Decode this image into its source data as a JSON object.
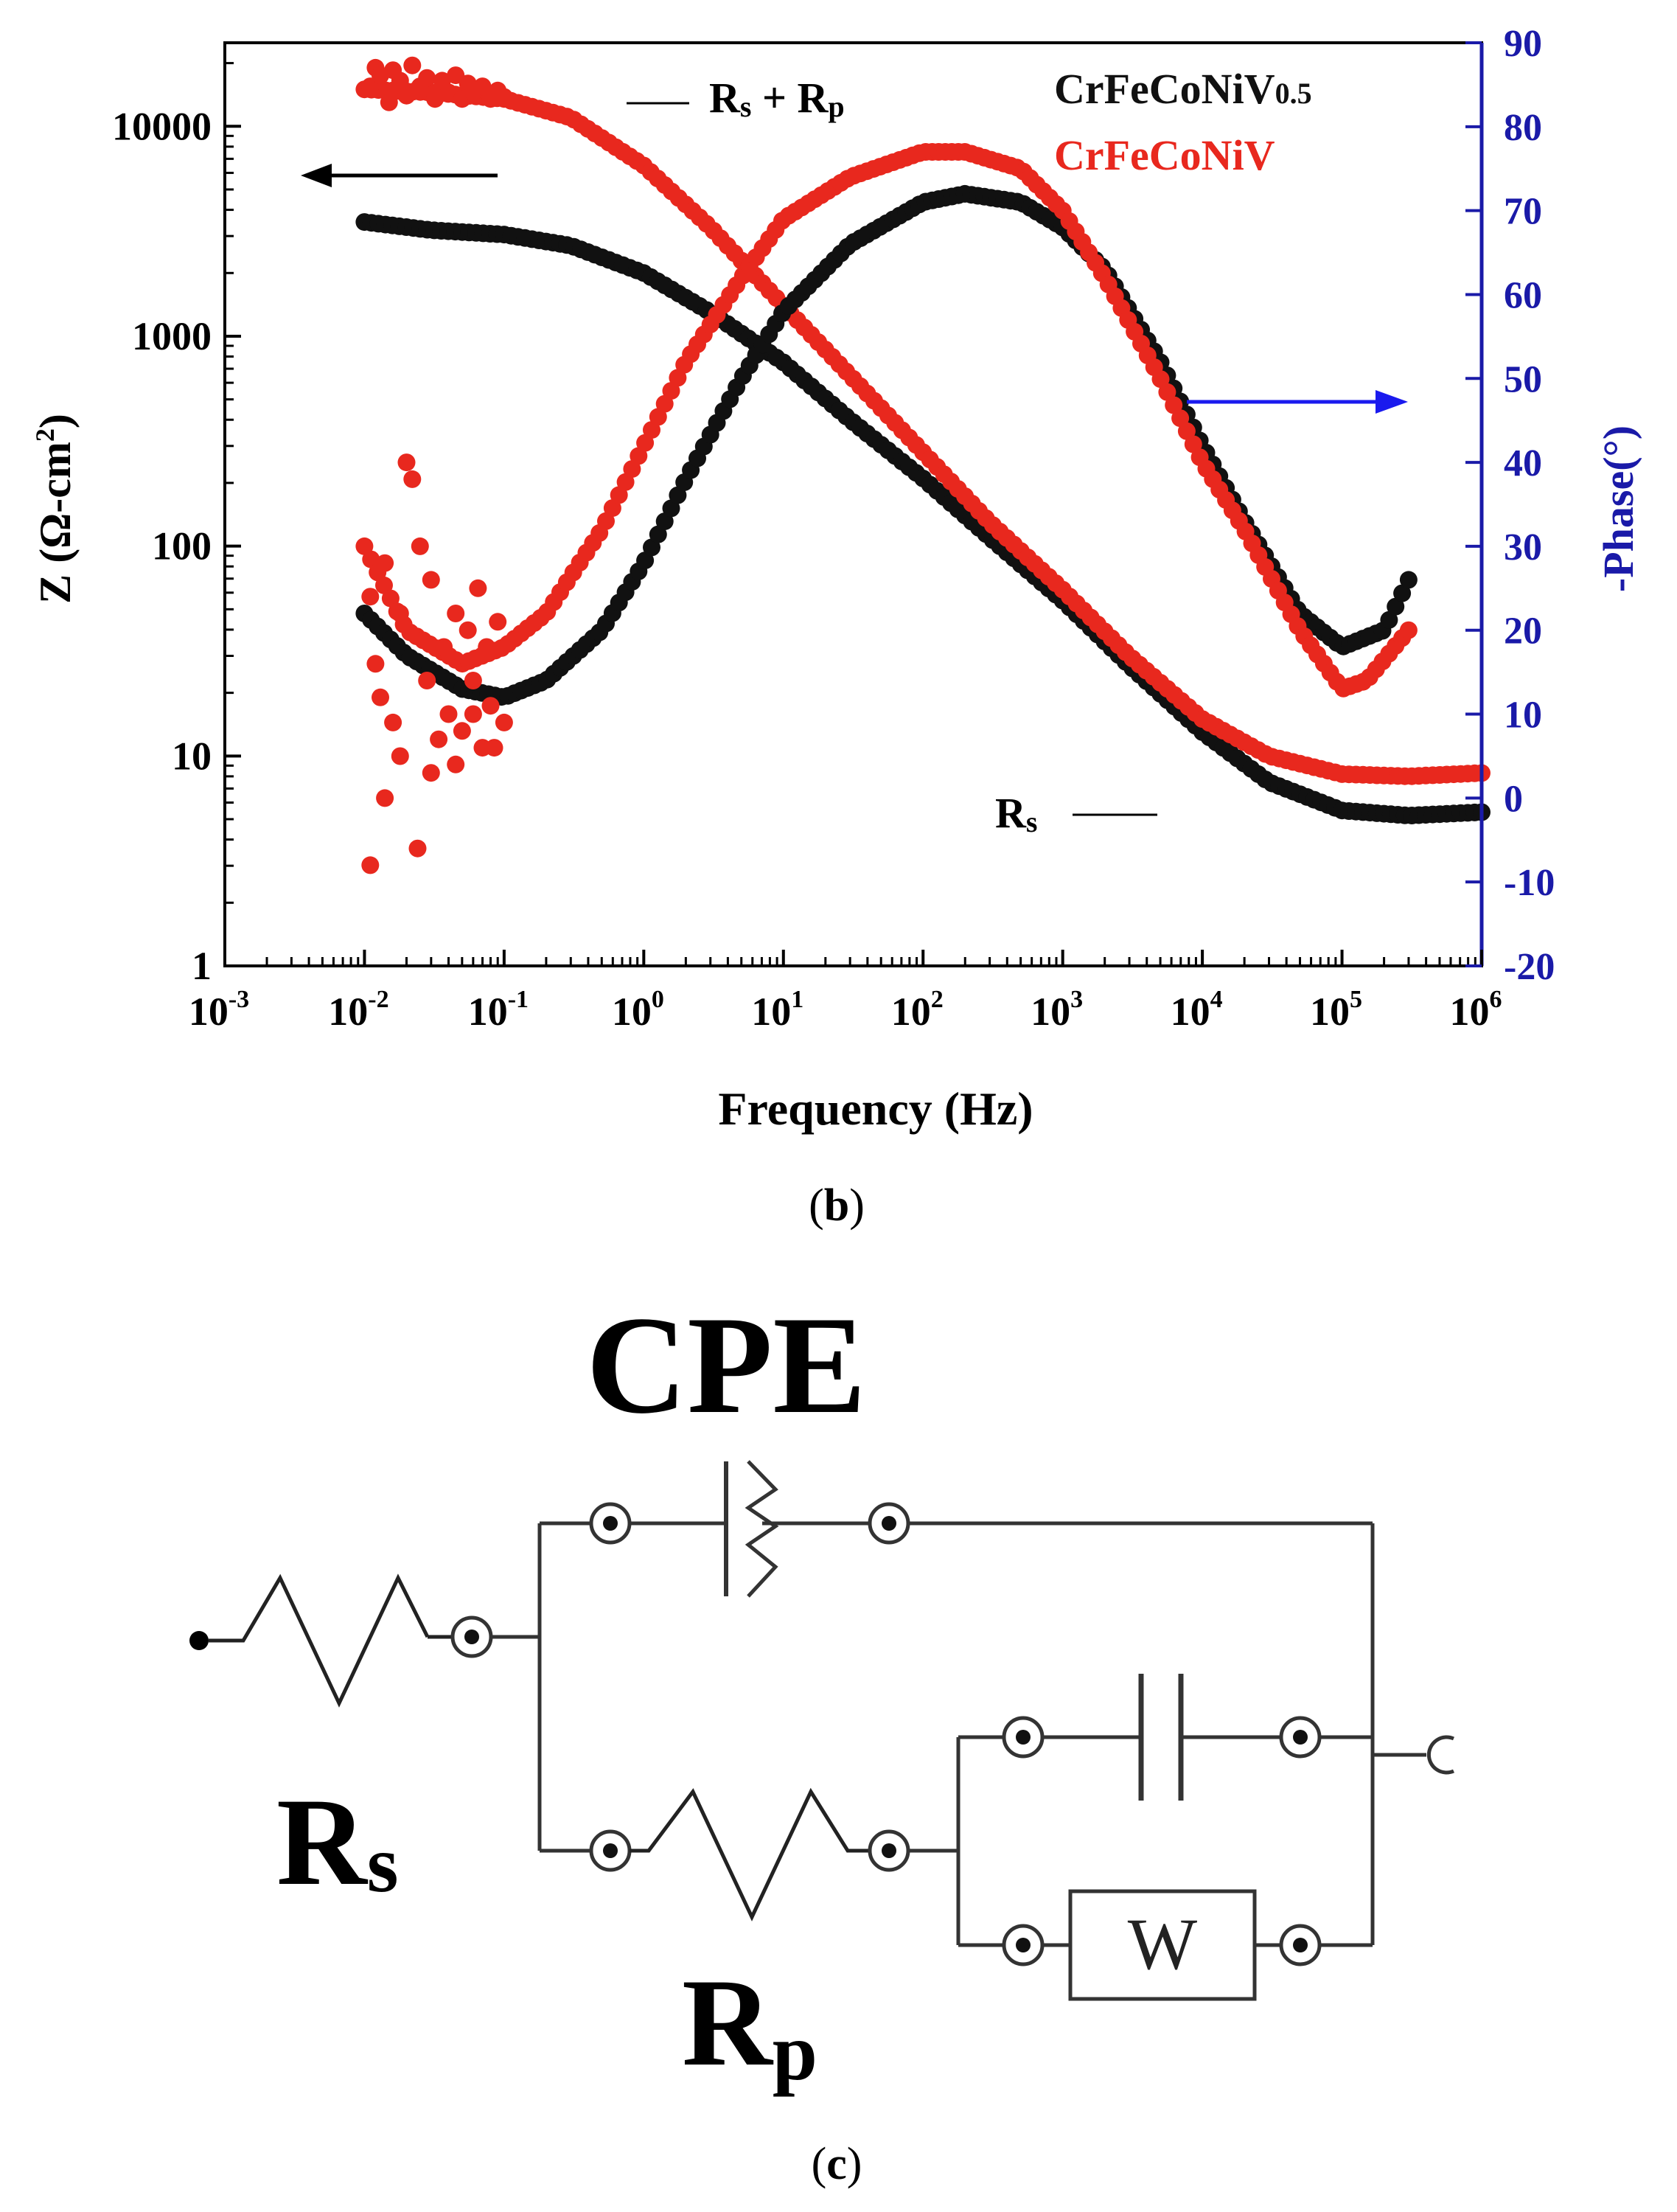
{
  "chart_data": {
    "type": "scatter",
    "title": "",
    "xlabel": "Frequency (Hz)",
    "ylabel": "Z (Ω-cm²)",
    "y2label": "-Phase(°)",
    "xscale": "log",
    "yscale": "log",
    "xlim": [
      0.001,
      1000000
    ],
    "ylim": [
      1,
      25000
    ],
    "y2lim": [
      -20,
      90
    ],
    "x_ticks": [
      "10^-3",
      "10^-2",
      "10^-1",
      "10^0",
      "10^1",
      "10^2",
      "10^3",
      "10^4",
      "10^5",
      "10^6"
    ],
    "y_ticks": [
      "1",
      "10",
      "100",
      "1000",
      "10000"
    ],
    "y2_ticks": [
      "-20",
      "-10",
      "0",
      "10",
      "20",
      "30",
      "40",
      "50",
      "60",
      "70",
      "80",
      "90"
    ],
    "legend": [
      {
        "name": "CrFeCoNiV",
        "sub": "0.5",
        "color": "#111111"
      },
      {
        "name": "CrFeCoNiV",
        "sub": "",
        "color": "#e8281e"
      }
    ],
    "annotations": {
      "rs_rp": {
        "main": "R",
        "sub1": "s",
        "plus": " + R",
        "sub2": "p"
      },
      "rs": {
        "main": "R",
        "sub": "s"
      },
      "left_arrow": "Z axis",
      "right_arrow": "Phase axis"
    },
    "series": [
      {
        "name": "CrFeCoNiV0.5 |Z|",
        "axis": "left",
        "color": "#111111",
        "points": [
          [
            0.01,
            3500
          ],
          [
            0.03,
            3200
          ],
          [
            0.1,
            3050
          ],
          [
            0.3,
            2700
          ],
          [
            1,
            2000
          ],
          [
            3,
            1300
          ],
          [
            10,
            750
          ],
          [
            30,
            400
          ],
          [
            100,
            210
          ],
          [
            300,
            110
          ],
          [
            1000,
            55
          ],
          [
            3000,
            27
          ],
          [
            10000,
            13
          ],
          [
            30000,
            7.5
          ],
          [
            100000,
            5.5
          ],
          [
            300000,
            5.2
          ],
          [
            1000000,
            5.4
          ]
        ]
      },
      {
        "name": "CrFeCoNiV |Z|",
        "axis": "left",
        "color": "#e8281e",
        "points": [
          [
            0.01,
            15000
          ],
          [
            0.03,
            14500
          ],
          [
            0.1,
            13500
          ],
          [
            0.3,
            11000
          ],
          [
            1,
            6500
          ],
          [
            3,
            3300
          ],
          [
            10,
            1400
          ],
          [
            30,
            650
          ],
          [
            100,
            280
          ],
          [
            300,
            130
          ],
          [
            1000,
            62
          ],
          [
            3000,
            30
          ],
          [
            10000,
            15
          ],
          [
            30000,
            10
          ],
          [
            100000,
            8.2
          ],
          [
            300000,
            8
          ],
          [
            1000000,
            8.3
          ]
        ]
      },
      {
        "name": "CrFeCoNiV0.5 -Phase",
        "axis": "right",
        "color": "#111111",
        "points": [
          [
            0.01,
            22
          ],
          [
            0.02,
            17
          ],
          [
            0.05,
            13
          ],
          [
            0.1,
            12
          ],
          [
            0.2,
            14
          ],
          [
            0.5,
            20
          ],
          [
            1,
            28
          ],
          [
            2,
            38
          ],
          [
            5,
            50
          ],
          [
            10,
            58
          ],
          [
            30,
            66
          ],
          [
            100,
            71
          ],
          [
            200,
            72
          ],
          [
            500,
            71
          ],
          [
            1000,
            68
          ],
          [
            2000,
            63
          ],
          [
            5000,
            52
          ],
          [
            10000,
            42
          ],
          [
            20000,
            33
          ],
          [
            50000,
            22
          ],
          [
            100000,
            18
          ],
          [
            200000,
            20
          ],
          [
            300000,
            26
          ]
        ]
      },
      {
        "name": "CrFeCoNiV -Phase",
        "axis": "right",
        "color": "#e8281e",
        "points": [
          [
            0.01,
            30
          ],
          [
            0.02,
            20
          ],
          [
            0.05,
            16
          ],
          [
            0.1,
            18
          ],
          [
            0.2,
            22
          ],
          [
            0.5,
            32
          ],
          [
            1,
            42
          ],
          [
            2,
            52
          ],
          [
            5,
            62
          ],
          [
            10,
            69
          ],
          [
            30,
            74
          ],
          [
            100,
            77
          ],
          [
            200,
            77
          ],
          [
            500,
            75
          ],
          [
            1000,
            70
          ],
          [
            2000,
            62
          ],
          [
            5000,
            50
          ],
          [
            10000,
            40
          ],
          [
            20000,
            32
          ],
          [
            50000,
            20
          ],
          [
            100000,
            13
          ],
          [
            150000,
            14
          ],
          [
            300000,
            20
          ]
        ]
      }
    ],
    "scatter_red_low": [
      [
        0.011,
        24
      ],
      [
        0.012,
        16
      ],
      [
        0.013,
        12
      ],
      [
        0.014,
        28
      ],
      [
        0.016,
        9
      ],
      [
        0.018,
        22
      ],
      [
        0.02,
        40
      ],
      [
        0.022,
        38
      ],
      [
        0.025,
        30
      ],
      [
        0.028,
        14
      ],
      [
        0.03,
        26
      ],
      [
        0.034,
        7
      ],
      [
        0.037,
        18
      ],
      [
        0.04,
        10
      ],
      [
        0.045,
        22
      ],
      [
        0.05,
        8
      ],
      [
        0.055,
        20
      ],
      [
        0.06,
        14
      ],
      [
        0.065,
        25
      ],
      [
        0.07,
        6
      ],
      [
        0.075,
        18
      ],
      [
        0.08,
        11
      ],
      [
        0.09,
        21
      ],
      [
        0.1,
        9
      ],
      [
        0.011,
        -8
      ],
      [
        0.014,
        0
      ],
      [
        0.018,
        5
      ],
      [
        0.024,
        -6
      ],
      [
        0.03,
        3
      ],
      [
        0.045,
        4
      ],
      [
        0.06,
        10
      ],
      [
        0.085,
        6
      ]
    ],
    "scatter_red_high": [
      [
        0.011,
        15500
      ],
      [
        0.012,
        19000
      ],
      [
        0.013,
        17500
      ],
      [
        0.015,
        13000
      ],
      [
        0.016,
        18500
      ],
      [
        0.018,
        16500
      ],
      [
        0.02,
        14000
      ],
      [
        0.022,
        19500
      ],
      [
        0.025,
        15500
      ],
      [
        0.028,
        17000
      ],
      [
        0.032,
        13500
      ],
      [
        0.036,
        16500
      ],
      [
        0.04,
        14500
      ],
      [
        0.045,
        17500
      ],
      [
        0.05,
        13500
      ],
      [
        0.055,
        16000
      ],
      [
        0.06,
        14500
      ],
      [
        0.07,
        15500
      ],
      [
        0.08,
        13500
      ],
      [
        0.09,
        14800
      ],
      [
        0.1,
        13800
      ]
    ]
  },
  "fig_b_label": {
    "open": "(",
    "letter": "b",
    "close": ")"
  },
  "circuit": {
    "cpe_label": "CPE",
    "rs_label": {
      "main": "R",
      "sub": "s"
    },
    "rp_label": {
      "main": "R",
      "sub": "p"
    },
    "w_label": "W"
  },
  "fig_c_label": {
    "open": "(",
    "letter": "c",
    "close": ")"
  }
}
